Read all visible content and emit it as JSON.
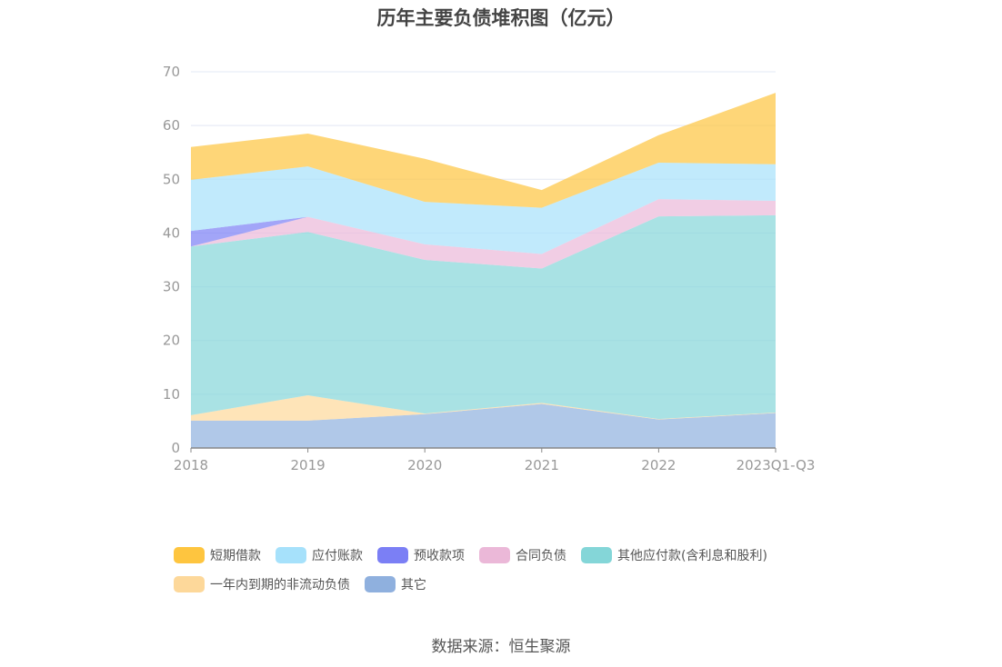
{
  "chart_data": {
    "type": "area",
    "stacked": true,
    "title": "历年主要负债堆积图（亿元）",
    "categories": [
      "2018",
      "2019",
      "2020",
      "2021",
      "2022",
      "2023Q1-Q3"
    ],
    "ylim": [
      0,
      70
    ],
    "yticks": [
      0,
      10,
      20,
      30,
      40,
      50,
      60,
      70
    ],
    "grid": true,
    "legend_position": "bottom",
    "series": [
      {
        "name": "其它",
        "color": "#8fb0de",
        "values": [
          5.1,
          5.1,
          6.3,
          8.2,
          5.3,
          6.5
        ]
      },
      {
        "name": "一年内到期的非流动负债",
        "color": "#fdd89a",
        "values": [
          1.0,
          4.7,
          0.1,
          0.2,
          0.1,
          0.1
        ]
      },
      {
        "name": "其他应付款(含利息和股利)",
        "color": "#84d6d8",
        "values": [
          31.4,
          30.4,
          28.6,
          25.0,
          37.7,
          36.7
        ]
      },
      {
        "name": "合同负债",
        "color": "#ebb8d8",
        "values": [
          0,
          2.8,
          2.9,
          2.7,
          3.2,
          2.7
        ]
      },
      {
        "name": "预收款项",
        "color": "#7b7ff5",
        "values": [
          2.9,
          0,
          0,
          0,
          0,
          0
        ]
      },
      {
        "name": "应付账款",
        "color": "#a6e1fb",
        "values": [
          9.5,
          9.4,
          7.9,
          8.6,
          6.8,
          6.8
        ]
      },
      {
        "name": "短期借款",
        "color": "#fec53f",
        "values": [
          6.1,
          6.1,
          8.0,
          3.3,
          5.1,
          13.3
        ]
      }
    ],
    "legend_order": [
      "短期借款",
      "应付账款",
      "预收款项",
      "合同负债",
      "其他应付款(含利息和股利)",
      "一年内到期的非流动负债",
      "其它"
    ]
  },
  "source": "数据来源：恒生聚源"
}
